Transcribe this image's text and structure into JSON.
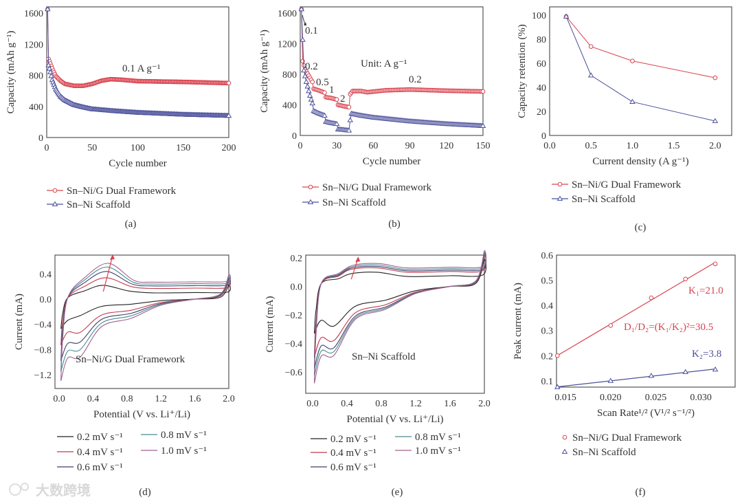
{
  "figure": {
    "panel_labels": [
      "(a)",
      "(b)",
      "(c)",
      "(d)",
      "(e)",
      "(f)"
    ],
    "watermark": "大数跨境"
  },
  "chart_data": [
    {
      "id": "a",
      "type": "line",
      "dense_markers": true,
      "xlabel": "Cycle number",
      "ylabel": "Capacity (mAh g⁻¹)",
      "xlim": [
        0,
        200
      ],
      "ylim": [
        0,
        1680
      ],
      "xticks": [
        "0",
        "50",
        "100",
        "150",
        "200"
      ],
      "yticks": [
        "0",
        "400",
        "800",
        "1200",
        "1600"
      ],
      "annotations": [
        "0.1 A g⁻¹"
      ],
      "series": [
        {
          "name": "Sn–Ni/G Dual Framework",
          "color": "#d9434f",
          "marker": "circle",
          "points": [
            [
              1,
              1650
            ],
            [
              2,
              1010
            ],
            [
              4,
              950
            ],
            [
              7,
              860
            ],
            [
              10,
              790
            ],
            [
              15,
              730
            ],
            [
              20,
              690
            ],
            [
              30,
              665
            ],
            [
              40,
              665
            ],
            [
              50,
              690
            ],
            [
              60,
              730
            ],
            [
              70,
              750
            ],
            [
              80,
              745
            ],
            [
              100,
              725
            ],
            [
              150,
              715
            ],
            [
              200,
              700
            ]
          ]
        },
        {
          "name": "Sn–Ni Scaffold",
          "color": "#4a4f9a",
          "marker": "triangle",
          "points": [
            [
              1,
              1650
            ],
            [
              2,
              930
            ],
            [
              4,
              840
            ],
            [
              6,
              740
            ],
            [
              10,
              620
            ],
            [
              15,
              530
            ],
            [
              20,
              480
            ],
            [
              30,
              420
            ],
            [
              40,
              390
            ],
            [
              50,
              365
            ],
            [
              75,
              340
            ],
            [
              100,
              320
            ],
            [
              150,
              295
            ],
            [
              200,
              280
            ]
          ]
        }
      ]
    },
    {
      "id": "b",
      "type": "line",
      "dense_markers": true,
      "xlabel": "Cycle number",
      "ylabel": "Capacity (mAh g⁻¹)",
      "xlim": [
        0,
        150
      ],
      "ylim": [
        0,
        1680
      ],
      "xticks": [
        "0",
        "30",
        "60",
        "90",
        "120",
        "150"
      ],
      "yticks": [
        "0",
        "400",
        "800",
        "1200",
        "1600"
      ],
      "annotations": [
        "0.1",
        "0.2",
        "0.5",
        "1",
        "2",
        "Unit: A g⁻¹",
        "0.2"
      ],
      "series": [
        {
          "name": "Sn–Ni/G Dual Framework",
          "color": "#d9434f",
          "marker": "circle",
          "points": [
            [
              1,
              1650
            ],
            [
              2,
              970
            ],
            [
              4,
              860
            ],
            [
              7,
              780
            ],
            [
              10,
              700
            ],
            [
              11,
              610
            ],
            [
              15,
              590
            ],
            [
              20,
              560
            ],
            [
              21,
              500
            ],
            [
              25,
              490
            ],
            [
              30,
              470
            ],
            [
              31,
              400
            ],
            [
              35,
              385
            ],
            [
              40,
              370
            ],
            [
              41,
              540
            ],
            [
              43,
              580
            ],
            [
              50,
              580
            ],
            [
              55,
              565
            ],
            [
              70,
              590
            ],
            [
              90,
              600
            ],
            [
              120,
              585
            ],
            [
              150,
              575
            ]
          ]
        },
        {
          "name": "Sn–Ni Scaffold",
          "color": "#4a4f9a",
          "marker": "triangle",
          "points": [
            [
              1,
              1650
            ],
            [
              3,
              850
            ],
            [
              5,
              700
            ],
            [
              8,
              520
            ],
            [
              10,
              420
            ],
            [
              11,
              320
            ],
            [
              15,
              290
            ],
            [
              20,
              260
            ],
            [
              21,
              180
            ],
            [
              25,
              165
            ],
            [
              30,
              150
            ],
            [
              31,
              80
            ],
            [
              35,
              75
            ],
            [
              40,
              65
            ],
            [
              41,
              200
            ],
            [
              42,
              285
            ],
            [
              50,
              260
            ],
            [
              60,
              235
            ],
            [
              90,
              185
            ],
            [
              120,
              150
            ],
            [
              150,
              125
            ]
          ]
        }
      ]
    },
    {
      "id": "c",
      "type": "line",
      "xlabel": "Current density (A g⁻¹)",
      "ylabel": "Capacity retention (%)",
      "xlim": [
        0,
        2.2
      ],
      "ylim": [
        0,
        107
      ],
      "xticks": [
        "0.0",
        "0.5",
        "1.0",
        "1.5",
        "2.0"
      ],
      "yticks": [
        "0",
        "20",
        "40",
        "60",
        "80",
        "100"
      ],
      "annotations": [],
      "series": [
        {
          "name": "Sn–Ni/G Dual Framework",
          "color": "#d9434f",
          "marker": "circle",
          "points": [
            [
              0.2,
              99
            ],
            [
              0.5,
              74
            ],
            [
              1.0,
              62
            ],
            [
              2.0,
              48
            ]
          ]
        },
        {
          "name": "Sn–Ni Scaffold",
          "color": "#4a4f9a",
          "marker": "triangle",
          "points": [
            [
              0.2,
              99
            ],
            [
              0.5,
              50
            ],
            [
              1.0,
              28
            ],
            [
              2.0,
              12
            ]
          ]
        }
      ]
    },
    {
      "id": "d",
      "type": "cv",
      "xlabel": "Potential (V vs. Li⁺/Li)",
      "ylabel": "Current (mA)",
      "xlim": [
        -0.05,
        2.0
      ],
      "ylim": [
        -1.42,
        0.7
      ],
      "xticks": [
        "0.0",
        "0.4",
        "0.8",
        "1.2",
        "1.6",
        "2.0"
      ],
      "yticks": [
        "0.4",
        "0.0",
        "−0.4",
        "−0.8",
        "−1.2"
      ],
      "annotations": [
        "Sn–Ni/G Dual Framework"
      ],
      "series": [
        {
          "name": "0.2 mV s⁻¹",
          "color": "#222222",
          "peak": 0.22,
          "peak_v": 0.52,
          "plateau": 0.1,
          "min": -0.47,
          "mid": -0.1
        },
        {
          "name": "0.4 mV s⁻¹",
          "color": "#c0394b",
          "peak": 0.34,
          "peak_v": 0.55,
          "plateau": 0.17,
          "min": -0.73,
          "mid": -0.22
        },
        {
          "name": "0.6 mV s⁻¹",
          "color": "#3a3f6a",
          "peak": 0.44,
          "peak_v": 0.56,
          "plateau": 0.21,
          "min": -0.98,
          "mid": -0.28
        },
        {
          "name": "0.8 mV s⁻¹",
          "color": "#4a8a90",
          "peak": 0.51,
          "peak_v": 0.57,
          "plateau": 0.24,
          "min": -1.15,
          "mid": -0.33
        },
        {
          "name": "1.0 mV s⁻¹",
          "color": "#a06090",
          "peak": 0.57,
          "peak_v": 0.58,
          "plateau": 0.27,
          "min": -1.3,
          "mid": -0.38
        }
      ]
    },
    {
      "id": "e",
      "type": "cv",
      "xlabel": "Potential (V vs. Li⁺/Li)",
      "ylabel": "Current (mA)",
      "xlim": [
        -0.08,
        2.0
      ],
      "ylim": [
        -0.75,
        0.22
      ],
      "xticks": [
        "0.0",
        "0.4",
        "0.8",
        "1.2",
        "1.6",
        "2.0"
      ],
      "yticks": [
        "0.2",
        "0.0",
        "−0.2",
        "−0.4",
        "−0.6"
      ],
      "annotations": [
        "Sn–Ni Scaffold"
      ],
      "series": [
        {
          "name": "0.2 mV s⁻¹",
          "color": "#222222",
          "peak": 0.09,
          "peak_v": 0.45,
          "plateau": 0.07,
          "min": -0.33,
          "mid": -0.12
        },
        {
          "name": "0.4 mV s⁻¹",
          "color": "#c0394b",
          "peak": 0.12,
          "peak_v": 0.45,
          "plateau": 0.1,
          "min": -0.5,
          "mid": -0.16
        },
        {
          "name": "0.6 mV s⁻¹",
          "color": "#3a3f6a",
          "peak": 0.13,
          "peak_v": 0.46,
          "plateau": 0.11,
          "min": -0.58,
          "mid": -0.18
        },
        {
          "name": "0.8 mV s⁻¹",
          "color": "#4a8a90",
          "peak": 0.14,
          "peak_v": 0.47,
          "plateau": 0.12,
          "min": -0.63,
          "mid": -0.19
        },
        {
          "name": "1.0 mV s⁻¹",
          "color": "#a06090",
          "peak": 0.15,
          "peak_v": 0.48,
          "plateau": 0.13,
          "min": -0.68,
          "mid": -0.2
        }
      ]
    },
    {
      "id": "f",
      "type": "scatter_fit",
      "xlabel": "Scan Rate¹/² (V¹/² s⁻¹/²)",
      "ylabel": "Peak current (mA)",
      "xlim": [
        0.014,
        0.0338
      ],
      "ylim": [
        0.075,
        0.6
      ],
      "xticks": [
        "0.015",
        "0.020",
        "0.025",
        "0.030"
      ],
      "yticks": [
        "0.1",
        "0.2",
        "0.3",
        "0.4",
        "0.5",
        "0.6"
      ],
      "annotations": [
        "K₁=21.0",
        "D₁/D₂=(K₁/K₂)²=30.5",
        "K₂=3.8"
      ],
      "series": [
        {
          "name": "Sn–Ni/G Dual Framework",
          "color": "#d9434f",
          "marker": "circle",
          "points": [
            [
              0.0141,
              0.2
            ],
            [
              0.02,
              0.32
            ],
            [
              0.0245,
              0.43
            ],
            [
              0.0283,
              0.505
            ],
            [
              0.0316,
              0.565
            ]
          ]
        },
        {
          "name": "Sn–Ni Scaffold",
          "color": "#4a4f9a",
          "marker": "triangle",
          "points": [
            [
              0.0141,
              0.075
            ],
            [
              0.02,
              0.1
            ],
            [
              0.0245,
              0.12
            ],
            [
              0.0283,
              0.135
            ],
            [
              0.0316,
              0.145
            ]
          ]
        }
      ]
    }
  ]
}
